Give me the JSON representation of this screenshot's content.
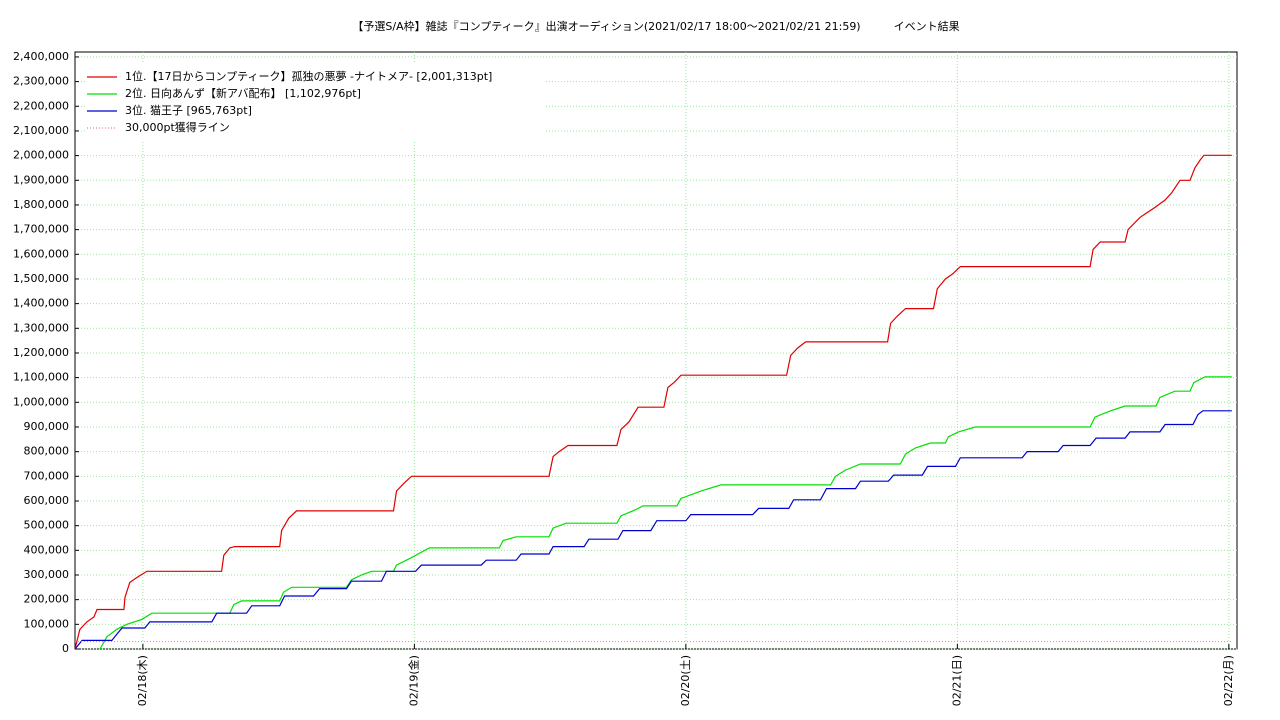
{
  "chart_data": {
    "type": "line",
    "title": "【予選S/A枠】雑誌『コンプティーク』出演オーディション(2021/02/17 18:00〜2021/02/21 21:59)　　　イベント結果",
    "xlim": [
      17.75,
      22.03
    ],
    "xticks": [
      {
        "value": 18,
        "label": "02/18(木)"
      },
      {
        "value": 19,
        "label": "02/19(金)"
      },
      {
        "value": 20,
        "label": "02/20(土)"
      },
      {
        "value": 21,
        "label": "02/21(日)"
      },
      {
        "value": 22,
        "label": "02/22(月)"
      }
    ],
    "ylim": [
      0,
      2420000
    ],
    "yticks": [
      0,
      {
        "value": 100000,
        "label": "100,000"
      },
      {
        "value": 200000,
        "label": "200,000"
      },
      {
        "value": 300000,
        "label": "300,000"
      },
      {
        "value": 400000,
        "label": "400,000"
      },
      {
        "value": 500000,
        "label": "500,000"
      },
      {
        "value": 600000,
        "label": "600,000"
      },
      {
        "value": 700000,
        "label": "700,000"
      },
      {
        "value": 800000,
        "label": "800,000"
      },
      {
        "value": 900000,
        "label": "900,000"
      },
      {
        "value": 1000000,
        "label": "1,000,000"
      },
      {
        "value": 1100000,
        "label": "1,100,000"
      },
      {
        "value": 1200000,
        "label": "1,200,000"
      },
      {
        "value": 1300000,
        "label": "1,300,000"
      },
      {
        "value": 1400000,
        "label": "1,400,000"
      },
      {
        "value": 1500000,
        "label": "1,500,000"
      },
      {
        "value": 1600000,
        "label": "1,600,000"
      },
      {
        "value": 1700000,
        "label": "1,700,000"
      },
      {
        "value": 1800000,
        "label": "1,800,000"
      },
      {
        "value": 1900000,
        "label": "1,900,000"
      },
      {
        "value": 2000000,
        "label": "2,000,000"
      },
      {
        "value": 2100000,
        "label": "2,100,000"
      },
      {
        "value": 2200000,
        "label": "2,200,000"
      },
      {
        "value": 2300000,
        "label": "2,300,000"
      },
      {
        "value": 2400000,
        "label": "2,400,000"
      }
    ],
    "grid": true,
    "legend": "upper left",
    "series": [
      {
        "name": "1位.【17日からコンプティーク】孤独の悪夢 -ナイトメア- [2,001,313pt]",
        "color": "#e00000",
        "dash": false,
        "x": [
          17.75,
          17.768,
          17.794,
          17.82,
          17.831,
          17.93,
          17.934,
          17.952,
          17.978,
          18.015,
          18.29,
          18.298,
          18.32,
          18.338,
          18.504,
          18.511,
          18.537,
          18.566,
          18.923,
          18.934,
          18.96,
          18.989,
          19.496,
          19.511,
          19.533,
          19.566,
          19.746,
          19.761,
          19.79,
          19.824,
          19.919,
          19.934,
          19.956,
          19.982,
          20.371,
          20.386,
          20.412,
          20.441,
          20.743,
          20.754,
          20.779,
          20.809,
          20.912,
          20.926,
          20.956,
          20.982,
          21.011,
          21.489,
          21.5,
          21.526,
          21.618,
          21.629,
          21.673,
          21.728,
          21.765,
          21.79,
          21.82,
          21.857,
          21.875,
          21.893,
          21.908,
          22.011
        ],
        "values": [
          0,
          80000,
          110000,
          130000,
          160000,
          160000,
          210000,
          270000,
          290000,
          315000,
          315000,
          380000,
          410000,
          415000,
          415000,
          480000,
          530000,
          560000,
          560000,
          640000,
          670000,
          700000,
          700000,
          780000,
          800000,
          825000,
          825000,
          890000,
          920000,
          980000,
          980000,
          1060000,
          1080000,
          1110000,
          1110000,
          1190000,
          1220000,
          1245000,
          1245000,
          1320000,
          1350000,
          1380000,
          1380000,
          1460000,
          1500000,
          1520000,
          1550000,
          1550000,
          1620000,
          1650000,
          1650000,
          1700000,
          1750000,
          1790000,
          1820000,
          1850000,
          1900000,
          1900000,
          1950000,
          1980000,
          2001313,
          2001313
        ]
      },
      {
        "name": "2位. 日向あんず【新アバ配布】 [1,102,976pt]",
        "color": "#00e000",
        "dash": false,
        "x": [
          17.842,
          17.868,
          17.904,
          17.941,
          17.996,
          18.033,
          18.32,
          18.335,
          18.364,
          18.504,
          18.518,
          18.548,
          18.75,
          18.768,
          18.805,
          18.842,
          18.923,
          18.934,
          18.989,
          19.055,
          19.313,
          19.327,
          19.375,
          19.496,
          19.511,
          19.559,
          19.746,
          19.761,
          19.816,
          19.842,
          19.967,
          19.982,
          20.055,
          20.129,
          20.533,
          20.551,
          20.588,
          20.643,
          20.79,
          20.809,
          20.846,
          20.901,
          20.956,
          20.967,
          21.004,
          21.066,
          21.489,
          21.507,
          21.563,
          21.618,
          21.732,
          21.746,
          21.801,
          21.857,
          21.871,
          21.912,
          22.011
        ],
        "values": [
          0,
          50000,
          80000,
          100000,
          120000,
          145000,
          145000,
          180000,
          195000,
          195000,
          230000,
          250000,
          250000,
          280000,
          300000,
          315000,
          315000,
          340000,
          370000,
          410000,
          410000,
          440000,
          455000,
          455000,
          490000,
          510000,
          510000,
          540000,
          565000,
          580000,
          580000,
          610000,
          640000,
          665000,
          665000,
          700000,
          725000,
          750000,
          750000,
          790000,
          815000,
          835000,
          835000,
          860000,
          880000,
          900000,
          900000,
          940000,
          965000,
          985000,
          985000,
          1020000,
          1045000,
          1045000,
          1080000,
          1102976,
          1102976
        ]
      },
      {
        "name": "3位. 猫王子 [965,763pt]",
        "color": "#0000d0",
        "dash": false,
        "x": [
          17.75,
          17.776,
          17.886,
          17.904,
          17.923,
          18.007,
          18.026,
          18.254,
          18.272,
          18.382,
          18.401,
          18.504,
          18.522,
          18.629,
          18.651,
          18.75,
          18.768,
          18.879,
          18.897,
          19.004,
          19.026,
          19.246,
          19.265,
          19.375,
          19.393,
          19.496,
          19.511,
          19.625,
          19.643,
          19.75,
          19.768,
          19.871,
          19.893,
          20.0,
          20.018,
          20.246,
          20.268,
          20.379,
          20.397,
          20.496,
          20.518,
          20.625,
          20.643,
          20.746,
          20.765,
          20.871,
          20.89,
          20.993,
          21.011,
          21.239,
          21.257,
          21.371,
          21.39,
          21.489,
          21.511,
          21.618,
          21.636,
          21.746,
          21.765,
          21.868,
          21.886,
          21.904,
          22.011
        ],
        "values": [
          0,
          35000,
          35000,
          60000,
          85000,
          85000,
          110000,
          110000,
          145000,
          145000,
          175000,
          175000,
          215000,
          215000,
          245000,
          245000,
          275000,
          275000,
          315000,
          315000,
          340000,
          340000,
          360000,
          360000,
          385000,
          385000,
          415000,
          415000,
          445000,
          445000,
          480000,
          480000,
          520000,
          520000,
          545000,
          545000,
          570000,
          570000,
          605000,
          605000,
          650000,
          650000,
          680000,
          680000,
          705000,
          705000,
          740000,
          740000,
          775000,
          775000,
          800000,
          800000,
          825000,
          825000,
          855000,
          855000,
          880000,
          880000,
          910000,
          910000,
          950000,
          965763,
          965763
        ]
      },
      {
        "name": "30,000pt獲得ライン",
        "color": "#e080a0",
        "dash": true,
        "x": [
          17.75,
          22.011
        ],
        "values": [
          30000,
          30000
        ]
      }
    ]
  }
}
